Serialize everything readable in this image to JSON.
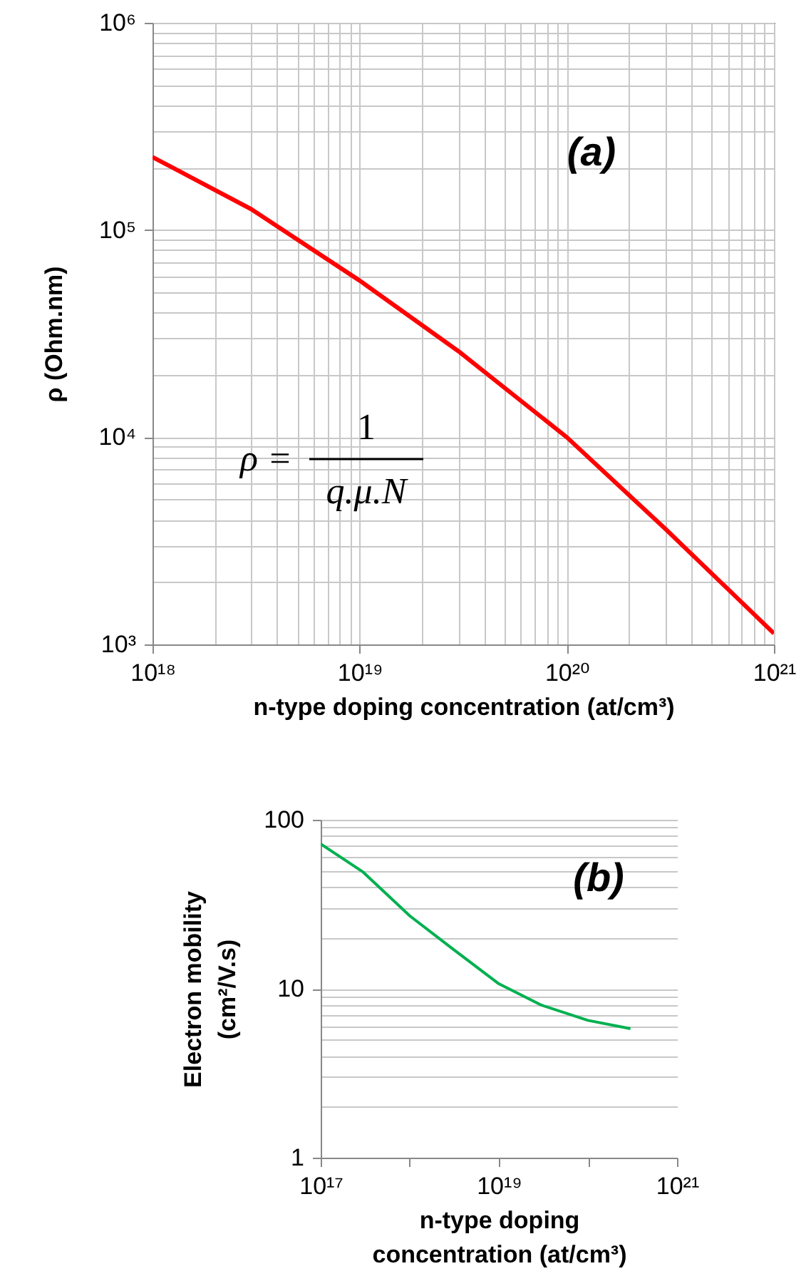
{
  "chart_data": [
    {
      "type": "line",
      "xlabel": "n-type doping concentration (at/cm³)",
      "ylabel": "ρ (Ohm.nm)",
      "log": "xy",
      "grid": true,
      "x": [
        1e+18,
        3e+18,
        1e+19,
        3e+19,
        1e+20,
        3e+20,
        1e+21
      ],
      "series": [
        {
          "color": "#ff0000",
          "values": [
            225000,
            126000,
            57000,
            26000,
            10000,
            3600,
            1130
          ]
        }
      ],
      "xlim": [
        1e+18,
        1e+21
      ],
      "xticks": [
        {
          "value": 1e+18,
          "label": "10¹⁸"
        },
        {
          "value": 1e+19,
          "label": "10¹⁹"
        },
        {
          "value": 1e+20,
          "label": "10²⁰"
        },
        {
          "value": 1e+21,
          "label": "10²¹"
        }
      ],
      "ylim": [
        1000,
        1000000
      ],
      "yticks": [
        {
          "value": 1000,
          "label": "10³"
        },
        {
          "value": 10000,
          "label": "10⁴"
        },
        {
          "value": 100000,
          "label": "10⁵"
        },
        {
          "value": 1000000,
          "label": "10⁶"
        }
      ],
      "annotations": [
        "(a)",
        "ρ =",
        "1",
        "q.μ.N"
      ]
    },
    {
      "type": "line",
      "xlabel": "n-type doping concentration (at/cm³)",
      "ylabel": "Electron mobility (cm²/V.s)",
      "log": "xy",
      "grid": "y",
      "x": [
        1e+17,
        3e+17,
        1e+18,
        3e+18,
        1e+19,
        3e+19,
        1e+20,
        3e+20
      ],
      "series": [
        {
          "color": "#00b050",
          "values": [
            72,
            49,
            27,
            17.3,
            10.7,
            8.0,
            6.5,
            5.8
          ]
        }
      ],
      "xlim": [
        1e+17,
        1e+21
      ],
      "xticks": [
        {
          "value": 1e+17,
          "label": "10¹⁷"
        },
        {
          "value": 1e+18,
          "label": null
        },
        {
          "value": 1e+19,
          "label": "10¹⁹"
        },
        {
          "value": 1e+20,
          "label": null
        },
        {
          "value": 1e+21,
          "label": "10²¹"
        }
      ],
      "ylim": [
        1,
        100
      ],
      "yticks": [
        1,
        10,
        100
      ],
      "annotations": [
        "(b)"
      ]
    }
  ]
}
